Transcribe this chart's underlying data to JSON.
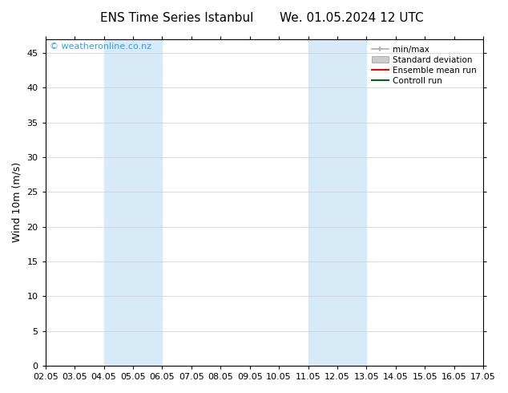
{
  "title_left": "ENS Time Series Istanbul",
  "title_right": "We. 01.05.2024 12 UTC",
  "ylabel": "Wind 10m (m/s)",
  "watermark": "© weatheronline.co.nz",
  "ylim": [
    0,
    47
  ],
  "yticks": [
    0,
    5,
    10,
    15,
    20,
    25,
    30,
    35,
    40,
    45
  ],
  "xtick_labels": [
    "02.05",
    "03.05",
    "04.05",
    "05.05",
    "06.05",
    "07.05",
    "08.05",
    "09.05",
    "10.05",
    "11.05",
    "12.05",
    "13.05",
    "14.05",
    "15.05",
    "16.05",
    "17.05"
  ],
  "xtick_positions": [
    0,
    1,
    2,
    3,
    4,
    5,
    6,
    7,
    8,
    9,
    10,
    11,
    12,
    13,
    14,
    15
  ],
  "shaded_bands": [
    {
      "x_start": 2,
      "x_end": 4,
      "color": "#d6eaf8"
    },
    {
      "x_start": 9,
      "x_end": 11,
      "color": "#d6eaf8"
    }
  ],
  "bg_color": "#ffffff",
  "plot_bg_color": "#ffffff",
  "grid_color": "#cccccc",
  "title_color": "#000000",
  "watermark_color": "#3399ff",
  "legend_items": [
    {
      "label": "min/max",
      "color": "#aaaaaa",
      "style": "minmax"
    },
    {
      "label": "Standard deviation",
      "color": "#cccccc",
      "style": "bar"
    },
    {
      "label": "Ensemble mean run",
      "color": "#ff0000",
      "style": "line"
    },
    {
      "label": "Controll run",
      "color": "#006600",
      "style": "line"
    }
  ],
  "font_family": "DejaVu Sans",
  "title_fontsize": 11,
  "tick_fontsize": 8,
  "ylabel_fontsize": 9,
  "watermark_fontsize": 8,
  "legend_fontsize": 7.5
}
